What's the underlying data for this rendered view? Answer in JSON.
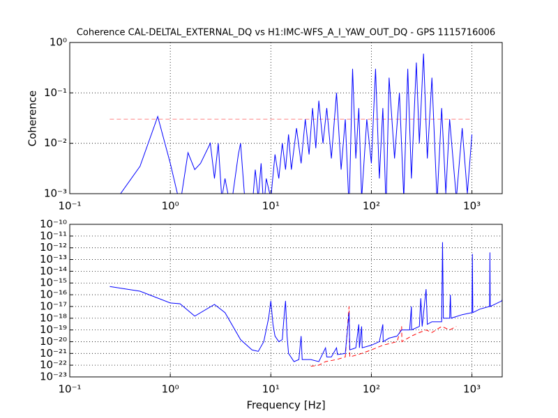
{
  "chart_data": [
    {
      "type": "line",
      "title": "Coherence CAL-DELTAL_EXTERNAL_DQ vs H1:IMC-WFS_A_I_YAW_OUT_DQ - GPS 1115716006",
      "ylabel": "Coherence",
      "log_x": true,
      "log_y": true,
      "grid": true,
      "xlim": [
        0.1,
        2000
      ],
      "ylim": [
        0.001,
        1
      ],
      "xticks": [
        {
          "value": 0.1,
          "label": "10⁻¹"
        },
        {
          "value": 1,
          "label": "10⁰"
        },
        {
          "value": 10,
          "label": "10¹"
        },
        {
          "value": 100,
          "label": "10²"
        },
        {
          "value": 1000,
          "label": "10³"
        }
      ],
      "yticks": [
        {
          "value": 0.001,
          "label": "10⁻³"
        },
        {
          "value": 0.01,
          "label": "10⁻²"
        },
        {
          "value": 0.1,
          "label": "10⁻¹"
        },
        {
          "value": 1,
          "label": "10⁰"
        }
      ],
      "series": [
        {
          "color": "#ff8080",
          "linestyle": "dashed",
          "x": [
            0.25,
            1000
          ],
          "values": [
            0.03,
            0.03
          ]
        },
        {
          "color": "#0000ff",
          "linestyle": "solid",
          "x": [
            0.25,
            0.5,
            0.75,
            1.0,
            1.25,
            1.5,
            1.75,
            2.0,
            2.5,
            2.75,
            3.0,
            3.25,
            3.5,
            4.0,
            4.75,
            5.0,
            5.5,
            6.5,
            7.0,
            7.5,
            8.0,
            8.5,
            9.0,
            10,
            11,
            12,
            13,
            14,
            15,
            16,
            18,
            20,
            22,
            24,
            26,
            28,
            30,
            33,
            36,
            40,
            45,
            50,
            55,
            60,
            65,
            70,
            75,
            80,
            90,
            100,
            110,
            120,
            130,
            140,
            150,
            170,
            190,
            210,
            230,
            250,
            280,
            300,
            330,
            360,
            400,
            450,
            500,
            550,
            600,
            700,
            800,
            900,
            1000
          ],
          "values": [
            0.0005,
            0.0035,
            0.034,
            0.004,
            0.0006,
            0.0065,
            0.003,
            0.004,
            0.01,
            0.002,
            0.01,
            0.0008,
            0.002,
            0.0005,
            0.006,
            0.01,
            0.0008,
            0.0005,
            0.003,
            0.0008,
            0.004,
            0.0005,
            0.002,
            0.0008,
            0.006,
            0.002,
            0.01,
            0.003,
            0.015,
            0.003,
            0.02,
            0.004,
            0.03,
            0.006,
            0.05,
            0.008,
            0.07,
            0.01,
            0.05,
            0.005,
            0.1,
            0.003,
            0.03,
            0.0005,
            0.3,
            0.005,
            0.05,
            0.0008,
            0.03,
            0.004,
            0.3,
            0.002,
            0.05,
            0.0005,
            0.2,
            0.005,
            0.1,
            0.0008,
            0.3,
            0.002,
            0.4,
            0.01,
            0.6,
            0.005,
            0.2,
            0.0007,
            0.05,
            0.001,
            0.03,
            0.0008,
            0.02,
            0.001,
            0.015
          ]
        }
      ]
    },
    {
      "type": "line",
      "xlabel": "Frequency [Hz]",
      "log_x": true,
      "log_y": true,
      "grid": true,
      "xlim": [
        0.1,
        2000
      ],
      "ylim": [
        1e-23,
        1e-10
      ],
      "xticks": [
        {
          "value": 0.1,
          "label": "10⁻¹"
        },
        {
          "value": 1,
          "label": "10⁰"
        },
        {
          "value": 10,
          "label": "10¹"
        },
        {
          "value": 100,
          "label": "10²"
        },
        {
          "value": 1000,
          "label": "10³"
        }
      ],
      "yticks": [
        {
          "value": 1e-23,
          "label": "10⁻²³"
        },
        {
          "value": 1e-22,
          "label": "10⁻²²"
        },
        {
          "value": 1e-21,
          "label": "10⁻²¹"
        },
        {
          "value": 1e-20,
          "label": "10⁻²⁰"
        },
        {
          "value": 1e-19,
          "label": "10⁻¹⁹"
        },
        {
          "value": 1e-18,
          "label": "10⁻¹⁸"
        },
        {
          "value": 1e-17,
          "label": "10⁻¹⁷"
        },
        {
          "value": 1e-16,
          "label": "10⁻¹⁶"
        },
        {
          "value": 1e-15,
          "label": "10⁻¹⁵"
        },
        {
          "value": 1e-14,
          "label": "10⁻¹⁴"
        },
        {
          "value": 1e-13,
          "label": "10⁻¹³"
        },
        {
          "value": 1e-12,
          "label": "10⁻¹²"
        },
        {
          "value": 1e-11,
          "label": "10⁻¹¹"
        },
        {
          "value": 1e-10,
          "label": "10⁻¹⁰"
        }
      ],
      "series": [
        {
          "color": "#ff0000",
          "linestyle": "dashed",
          "x": [
            25,
            30,
            35,
            45,
            55,
            60,
            61,
            80,
            100,
            130,
            180,
            200,
            201,
            250,
            300,
            350,
            400,
            500,
            600,
            700
          ],
          "values": [
            8e-23,
            1e-22,
            2e-22,
            3e-22,
            5e-22,
            1e-17,
            5e-22,
            1e-21,
            2e-21,
            5e-21,
            1e-20,
            2e-19,
            1e-20,
            3e-20,
            6e-20,
            1e-19,
            6e-20,
            2e-19,
            1e-19,
            2e-19
          ]
        },
        {
          "color": "#0000ff",
          "linestyle": "solid",
          "x": [
            0.25,
            0.5,
            1,
            1.25,
            1.75,
            2.75,
            3.5,
            5,
            6.5,
            7.5,
            8.5,
            9.5,
            10,
            10.5,
            11,
            12,
            13,
            13.5,
            14,
            14.5,
            15,
            17,
            19,
            20,
            20.5,
            25,
            30,
            35,
            36,
            40,
            45,
            46,
            55,
            60,
            61,
            70,
            75,
            76,
            80,
            81,
            100,
            120,
            130,
            131,
            150,
            180,
            200,
            240,
            250,
            251,
            300,
            310,
            320,
            350,
            360,
            400,
            500,
            510,
            520,
            600,
            610,
            620,
            800,
            1000,
            1010,
            1020,
            1200,
            1500,
            1510,
            1520,
            1800,
            1980,
            2000
          ],
          "values": [
            5e-16,
            2e-16,
            2e-17,
            1.7e-17,
            1.5e-18,
            1.5e-17,
            3e-18,
            1.5e-20,
            2e-21,
            1.5e-21,
            1e-20,
            1e-18,
            3e-17,
            3e-19,
            3e-20,
            1e-20,
            1.5e-20,
            1e-18,
            3e-17,
            3e-20,
            1e-21,
            2e-22,
            3e-22,
            3e-20,
            3e-22,
            3e-22,
            2e-22,
            3e-21,
            5e-22,
            5e-22,
            3e-21,
            8e-22,
            1e-21,
            3e-18,
            2e-21,
            3e-21,
            3e-19,
            3e-21,
            2e-19,
            3e-21,
            5e-21,
            1e-20,
            3e-19,
            1e-20,
            2e-20,
            3e-20,
            1e-19,
            1e-19,
            1e-17,
            1e-19,
            2e-19,
            5e-17,
            2e-19,
            3e-16,
            3e-19,
            5e-19,
            5e-19,
            3e-12,
            1e-18,
            1e-18,
            1e-16,
            1e-18,
            2e-18,
            3e-18,
            3e-13,
            3e-18,
            6e-18,
            1e-17,
            4e-13,
            1e-17,
            2e-17,
            3e-17,
            4e-17
          ]
        }
      ]
    }
  ]
}
